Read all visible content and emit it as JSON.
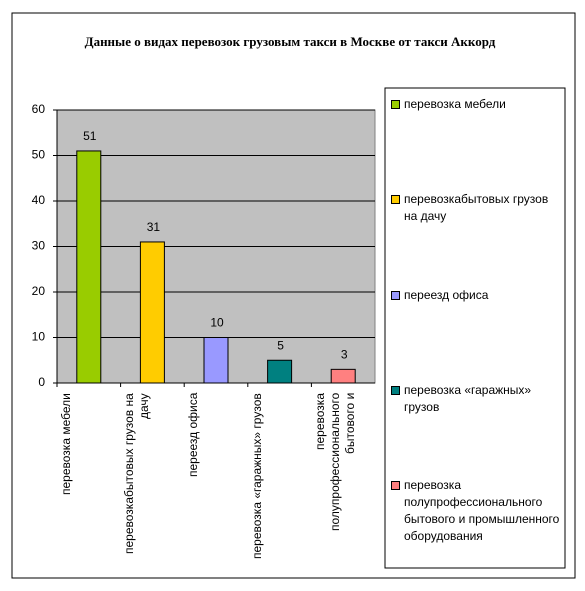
{
  "chart_data": {
    "type": "bar",
    "title": "Данные о видах перевозок грузовым такси в Москве от такси Аккорд",
    "categories": [
      "перевозка мебели",
      "перевозкабытовых грузов на дачу",
      "переезд офиса",
      "перевозка «гаражных» грузов",
      "перевозка полупрофессионального бытового и"
    ],
    "legend_labels": [
      "перевозка мебели",
      "перевозкабытовых грузов на дачу",
      "переезд офиса",
      "перевозка «гаражных» грузов",
      "перевозка полупрофессионального бытового и промышленного оборудования"
    ],
    "values": [
      51,
      31,
      10,
      5,
      3
    ],
    "colors": [
      "#99cc00",
      "#ffcc00",
      "#9999ff",
      "#008080",
      "#ff8080"
    ],
    "ylim": [
      0,
      60
    ],
    "yticks": [
      0,
      10,
      20,
      30,
      40,
      50,
      60
    ],
    "grid": true,
    "legend": "right"
  }
}
